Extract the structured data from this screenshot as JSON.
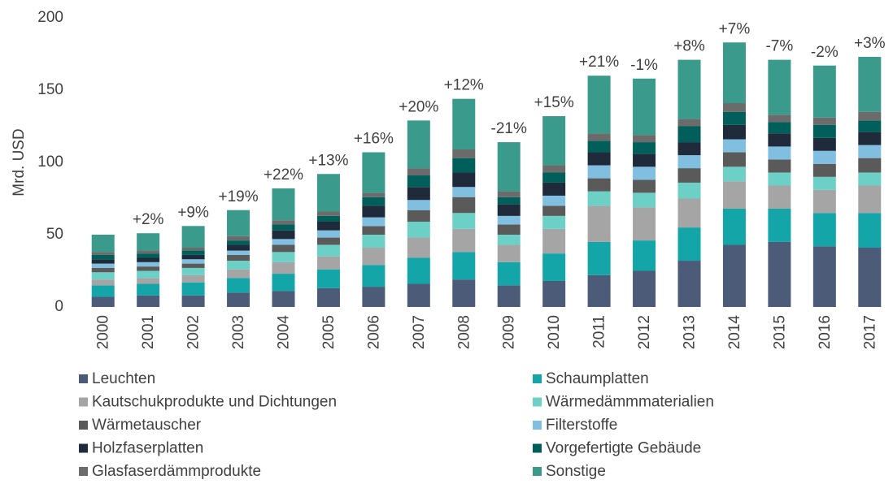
{
  "chart_data": {
    "type": "stacked_bar",
    "y_label": "Mrd. USD",
    "categories": [
      "2000",
      "2001",
      "2002",
      "2003",
      "2004",
      "2005",
      "2006",
      "2007",
      "2008",
      "2009",
      "2010",
      "2011",
      "2012",
      "2013",
      "2014",
      "2015",
      "2016",
      "2017"
    ],
    "growth_labels": [
      null,
      "+2%",
      "+9%",
      "+19%",
      "+22%",
      "+13%",
      "+16%",
      "+20%",
      "+12%",
      "-21%",
      "+15%",
      "+21%",
      "-1%",
      "+8%",
      "+7%",
      "-7%",
      "-2%",
      "+3%"
    ],
    "ylim": [
      0,
      200
    ],
    "yticks": [
      0,
      50,
      100,
      150,
      200
    ],
    "grid": false,
    "legend": "bottom",
    "series": [
      {
        "name": "Leuchten",
        "color": "#4b5b78",
        "values": [
          7,
          8,
          8,
          10,
          11,
          13,
          14,
          16,
          19,
          15,
          18,
          22,
          25,
          32,
          43,
          45,
          42,
          41
        ]
      },
      {
        "name": "Schaumplatten",
        "color": "#14a5a8",
        "values": [
          8,
          8,
          9,
          10,
          12,
          13,
          15,
          18,
          19,
          16,
          19,
          23,
          21,
          23,
          25,
          23,
          23,
          24
        ]
      },
      {
        "name": "Kautschukprodukte und Dichtungen",
        "color": "#a5a5a5",
        "values": [
          4,
          4,
          5,
          6,
          8,
          9,
          12,
          14,
          16,
          12,
          17,
          25,
          23,
          20,
          19,
          16,
          16,
          19
        ]
      },
      {
        "name": "Wärmedämmmaterialien",
        "color": "#6dd0c7",
        "values": [
          5,
          5,
          5,
          6,
          7,
          8,
          9,
          11,
          11,
          7,
          9,
          10,
          10,
          11,
          10,
          9,
          9,
          9
        ]
      },
      {
        "name": "Wärmetauscher",
        "color": "#5a5a5a",
        "values": [
          3,
          3,
          3,
          4,
          5,
          5,
          6,
          8,
          11,
          7,
          7,
          9,
          9,
          10,
          10,
          9,
          9,
          10
        ]
      },
      {
        "name": "Filterstoffe",
        "color": "#80bfe0",
        "values": [
          3,
          3,
          3,
          3,
          4,
          5,
          6,
          7,
          7,
          6,
          7,
          9,
          9,
          9,
          9,
          9,
          9,
          9
        ]
      },
      {
        "name": "Holzfaserplatten",
        "color": "#1f2a3b",
        "values": [
          3,
          3,
          3,
          4,
          6,
          6,
          8,
          9,
          10,
          8,
          9,
          9,
          9,
          9,
          10,
          9,
          9,
          9
        ]
      },
      {
        "name": "Vorgefertigte Gebäude",
        "color": "#005f5a",
        "values": [
          3,
          3,
          3,
          3,
          4,
          4,
          6,
          8,
          10,
          5,
          7,
          8,
          8,
          11,
          9,
          8,
          9,
          8
        ]
      },
      {
        "name": "Glasfaserdämmprodukte",
        "color": "#6b6b6b",
        "values": [
          2,
          2,
          2,
          3,
          3,
          3,
          3,
          5,
          6,
          4,
          5,
          5,
          5,
          5,
          6,
          5,
          5,
          6
        ]
      },
      {
        "name": "Sonstige",
        "color": "#3a9a8c",
        "values": [
          12,
          12,
          15,
          18,
          22,
          26,
          28,
          33,
          35,
          34,
          34,
          40,
          39,
          41,
          42,
          38,
          36,
          38
        ]
      }
    ]
  }
}
